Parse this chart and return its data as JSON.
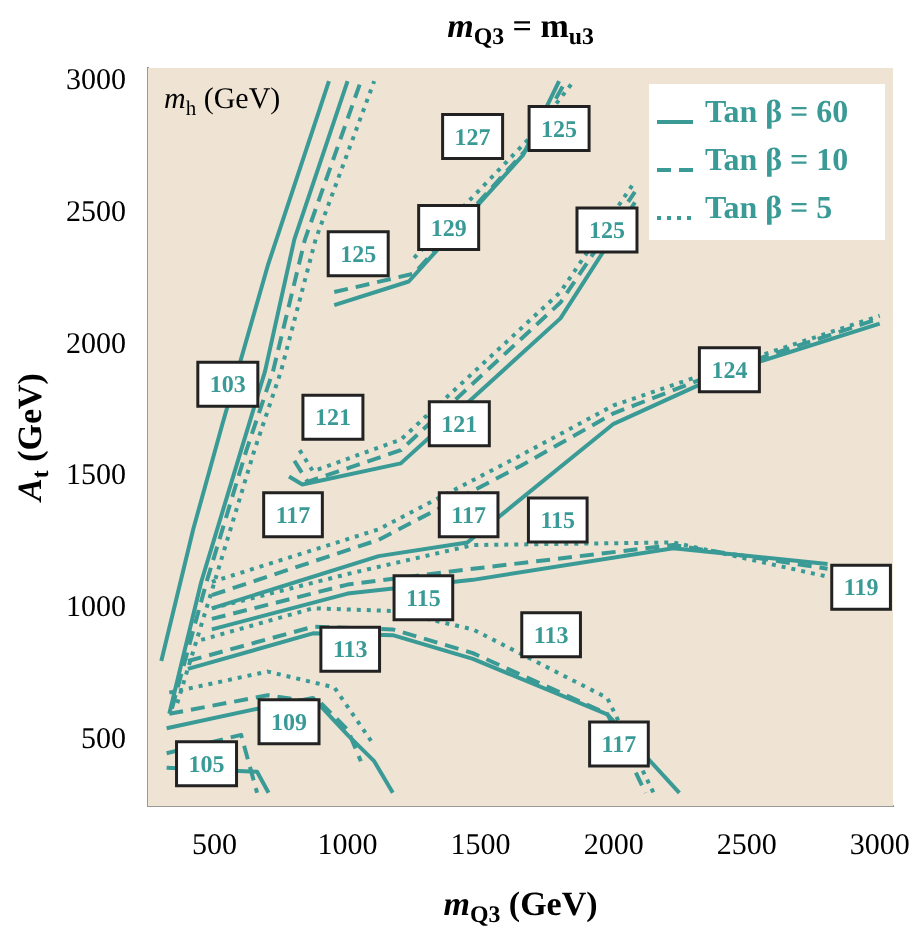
{
  "chart_data": {
    "type": "line",
    "title": "m$_{Q3}$ = m$_{u3}$",
    "xlabel": "m$_{Q3}$ (GeV)",
    "ylabel": "A$_{t}$ (GeV)",
    "xlim": [
      250,
      3050
    ],
    "ylim": [
      250,
      3050
    ],
    "xticks": [
      500,
      1000,
      1500,
      2000,
      2500,
      3000
    ],
    "yticks": [
      500,
      1000,
      1500,
      2000,
      2500,
      3000
    ],
    "grid": false,
    "legend": "top right",
    "marker": "none",
    "series": [
      {
        "name": "Tan β = 60",
        "color": "#3a9a96",
        "line_style": "solid",
        "x": [
          490,
          1000,
          1471,
          2224,
          2804
        ],
        "values": [
          920,
          1056,
          1108,
          1228,
          1168
        ]
      },
      {
        "name": "Tan β = 10",
        "color": "#3a9a96",
        "line_style": "dashed",
        "x": [
          490,
          1000,
          1471,
          2224,
          2804
        ],
        "values": [
          960,
          1090,
          1150,
          1240,
          1150
        ]
      },
      {
        "name": "Tan β = 5",
        "color": "#3a9a96",
        "line_style": "dotted",
        "x": [
          490,
          1000,
          1471,
          2224,
          2804
        ],
        "values": [
          1000,
          1130,
          1240,
          1250,
          1120
        ]
      },
      {
        "color": "#3a9a96",
        "line_style": "solid",
        "x": [
          400,
          870,
          1170,
          1471,
          1976,
          2247
        ],
        "values": [
          770,
          905,
          898,
          808,
          598,
          300
        ]
      },
      {
        "color": "#3a9a96",
        "line_style": "dashed",
        "x": [
          400,
          870,
          1170,
          1471,
          1976,
          2120
        ],
        "values": [
          800,
          930,
          920,
          830,
          600,
          300
        ]
      },
      {
        "color": "#3a9a96",
        "line_style": "dotted",
        "x": [
          450,
          870,
          1170,
          1471,
          1976,
          2150
        ],
        "values": [
          880,
          1000,
          990,
          920,
          660,
          300
        ]
      },
      {
        "color": "#3a9a96",
        "line_style": "solid",
        "x": [
          320,
          666,
          870,
          1000,
          1100,
          1170
        ],
        "values": [
          545,
          620,
          660,
          520,
          420,
          300
        ]
      },
      {
        "color": "#3a9a96",
        "line_style": "dashed",
        "x": [
          330,
          700,
          900,
          1000,
          1050
        ],
        "values": [
          600,
          670,
          640,
          540,
          420
        ]
      },
      {
        "color": "#3a9a96",
        "line_style": "dotted",
        "x": [
          330,
          700,
          950,
          1100
        ],
        "values": [
          680,
          760,
          700,
          480
        ]
      },
      {
        "color": "#3a9a96",
        "line_style": "solid",
        "x": [
          320,
          660,
          703
        ],
        "values": [
          395,
          380,
          300
        ]
      },
      {
        "color": "#3a9a96",
        "line_style": "dashed",
        "x": [
          320,
          600,
          660
        ],
        "values": [
          450,
          520,
          300
        ]
      },
      {
        "color": "#3a9a96",
        "line_style": "solid",
        "x": [
          490,
          1117,
          1450,
          2000,
          2435,
          3000
        ],
        "values": [
          1000,
          1198,
          1250,
          1700,
          1900,
          2080
        ]
      },
      {
        "color": "#3a9a96",
        "line_style": "dashed",
        "x": [
          490,
          1117,
          1650,
          2000,
          2435,
          3000
        ],
        "values": [
          1050,
          1260,
          1540,
          1740,
          1910,
          2100
        ]
      },
      {
        "color": "#3a9a96",
        "line_style": "dotted",
        "x": [
          490,
          1117,
          1650,
          2000,
          2435,
          3000
        ],
        "values": [
          1100,
          1300,
          1580,
          1770,
          1920,
          2110
        ]
      },
      {
        "color": "#3a9a96",
        "line_style": "solid",
        "x": [
          780,
          830,
          1200,
          1800,
          2080
        ],
        "values": [
          1500,
          1470,
          1550,
          2100,
          2540
        ]
      },
      {
        "color": "#3a9a96",
        "line_style": "dashed",
        "x": [
          800,
          850,
          1200,
          1800,
          2080
        ],
        "values": [
          1560,
          1480,
          1600,
          2160,
          2580
        ]
      },
      {
        "color": "#3a9a96",
        "line_style": "dotted",
        "x": [
          820,
          870,
          1200,
          1800,
          2080
        ],
        "values": [
          1600,
          1520,
          1640,
          2200,
          2620
        ]
      },
      {
        "color": "#3a9a96",
        "line_style": "solid",
        "x": [
          950,
          1230,
          1660,
          1795
        ],
        "values": [
          2150,
          2240,
          2720,
          3000
        ]
      },
      {
        "color": "#3a9a96",
        "line_style": "dashed",
        "x": [
          950,
          1250,
          1680,
          1820
        ],
        "values": [
          2200,
          2270,
          2750,
          3000
        ]
      },
      {
        "color": "#3a9a96",
        "line_style": "dotted",
        "x": [
          1250,
          1680,
          1850
        ],
        "values": [
          2330,
          2780,
          3000
        ]
      },
      {
        "color": "#3a9a96",
        "line_style": "solid",
        "x": [
          330,
          450,
          600,
          690,
          800,
          1000
        ],
        "values": [
          600,
          1100,
          1600,
          1900,
          2400,
          3000
        ]
      },
      {
        "color": "#3a9a96",
        "line_style": "solid",
        "x": [
          300,
          420,
          530,
          700,
          930
        ],
        "values": [
          800,
          1300,
          1700,
          2300,
          3000
        ]
      },
      {
        "color": "#3a9a96",
        "line_style": "dashed",
        "x": [
          340,
          470,
          620,
          720,
          840,
          1050
        ],
        "values": [
          620,
          1100,
          1600,
          1900,
          2400,
          3000
        ]
      },
      {
        "color": "#3a9a96",
        "line_style": "dotted",
        "x": [
          360,
          500,
          650,
          750,
          880,
          1100
        ],
        "values": [
          640,
          1100,
          1600,
          1900,
          2400,
          3000
        ]
      }
    ],
    "annotations": [
      "m$_{h}$ (GeV)",
      {
        "text": "103",
        "x": 550,
        "y": 1850
      },
      {
        "text": "105",
        "x": 470,
        "y": 410
      },
      {
        "text": "109",
        "x": 780,
        "y": 570
      },
      {
        "text": "113",
        "x": 1010,
        "y": 845
      },
      {
        "text": "113",
        "x": 1765,
        "y": 900
      },
      {
        "text": "115",
        "x": 1285,
        "y": 1040
      },
      {
        "text": "115",
        "x": 1790,
        "y": 1335
      },
      {
        "text": "117",
        "x": 795,
        "y": 1355
      },
      {
        "text": "117",
        "x": 1455,
        "y": 1355
      },
      {
        "text": "117",
        "x": 2020,
        "y": 485
      },
      {
        "text": "119",
        "x": 2930,
        "y": 1080
      },
      {
        "text": "121",
        "x": 945,
        "y": 1725
      },
      {
        "text": "121",
        "x": 1420,
        "y": 1700
      },
      {
        "text": "124",
        "x": 2435,
        "y": 1905
      },
      {
        "text": "125",
        "x": 1040,
        "y": 2345
      },
      {
        "text": "125",
        "x": 1975,
        "y": 2435
      },
      {
        "text": "125",
        "x": 1795,
        "y": 2820
      },
      {
        "text": "127",
        "x": 1470,
        "y": 2790
      },
      {
        "text": "129",
        "x": 1380,
        "y": 2445
      }
    ]
  }
}
